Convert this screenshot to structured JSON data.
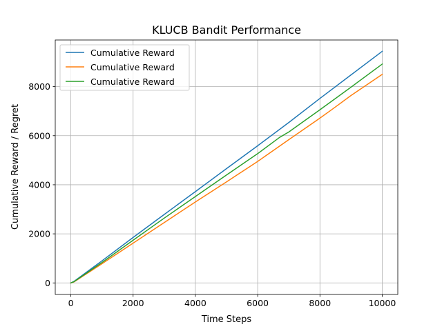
{
  "chart_data": {
    "type": "line",
    "title": "KLUCB Bandit Performance",
    "xlabel": "Time Steps",
    "ylabel": "Cumulative Reward / Regret",
    "xlim": [
      -500,
      10500
    ],
    "ylim": [
      -470,
      9900
    ],
    "xticks": [
      0,
      2000,
      4000,
      6000,
      8000,
      10000
    ],
    "yticks": [
      0,
      2000,
      4000,
      6000,
      8000
    ],
    "grid": true,
    "legend_position": "top-left",
    "series": [
      {
        "name": "Cumulative Reward",
        "color": "#1f77b4",
        "x": [
          0,
          100,
          1000,
          2000,
          3000,
          4000,
          5000,
          6000,
          7000,
          8000,
          9000,
          10000
        ],
        "y": [
          0,
          60,
          900,
          1850,
          2790,
          3720,
          4660,
          5590,
          6540,
          7520,
          8480,
          9440
        ]
      },
      {
        "name": "Cumulative Reward",
        "color": "#ff7f0e",
        "x": [
          0,
          100,
          1000,
          2000,
          3000,
          4000,
          5000,
          6000,
          7000,
          8000,
          8400,
          9000,
          10000
        ],
        "y": [
          0,
          40,
          780,
          1620,
          2460,
          3300,
          4120,
          4950,
          5840,
          6720,
          7080,
          7640,
          8500
        ]
      },
      {
        "name": "Cumulative Reward",
        "color": "#2ca02c",
        "x": [
          0,
          100,
          1000,
          2000,
          3000,
          4000,
          5000,
          6000,
          6700,
          7000,
          8000,
          9000,
          10000
        ],
        "y": [
          0,
          50,
          830,
          1740,
          2640,
          3520,
          4400,
          5270,
          5930,
          6150,
          7060,
          7980,
          8920
        ]
      }
    ]
  }
}
